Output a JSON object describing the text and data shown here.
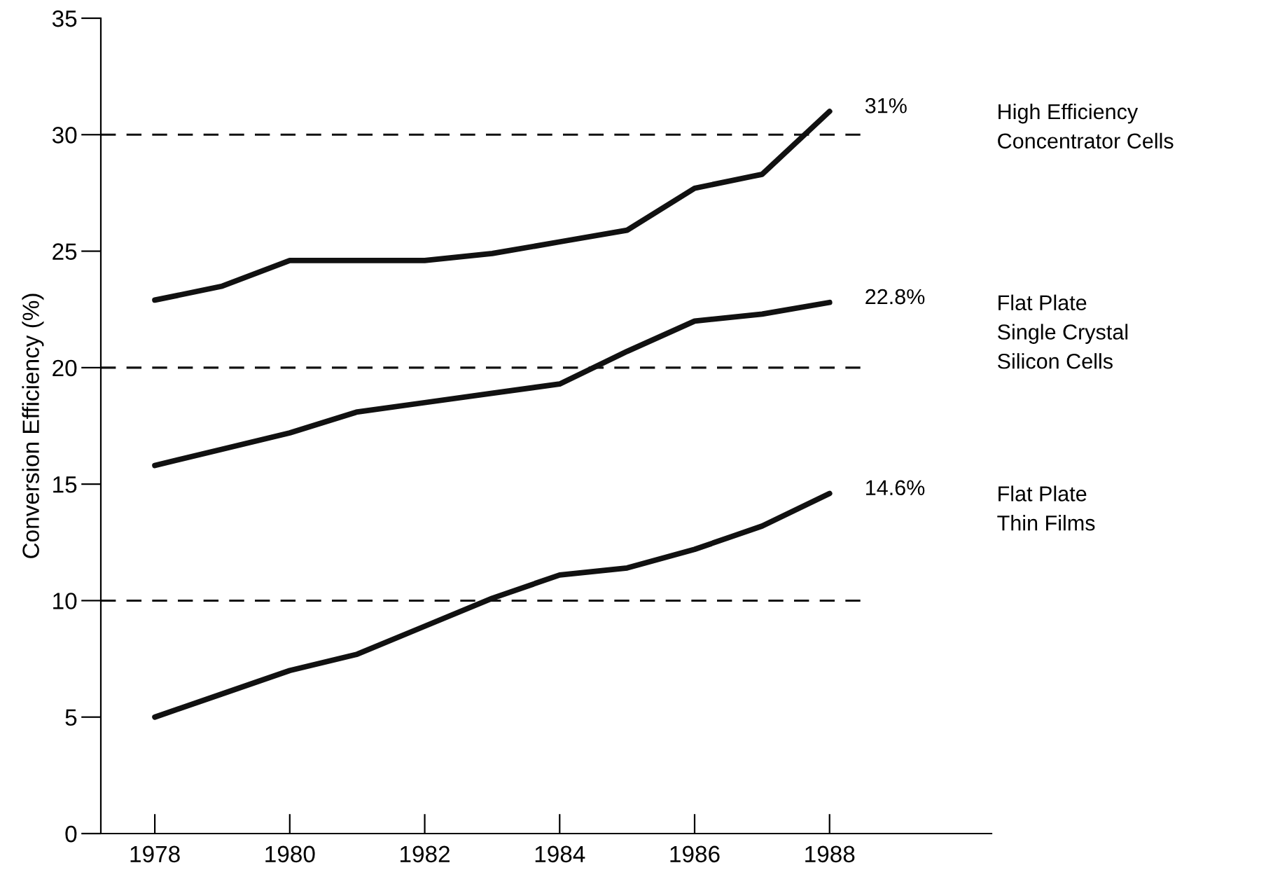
{
  "chart_data": {
    "type": "line",
    "ylabel": "Conversion Efficiency (%)",
    "x": [
      1978,
      1979,
      1980,
      1981,
      1982,
      1983,
      1984,
      1985,
      1986,
      1987,
      1988
    ],
    "series": [
      {
        "name": "High Efficiency\nConcentrator Cells",
        "color": "#111111",
        "values": [
          22.9,
          23.5,
          24.6,
          24.6,
          24.6,
          24.9,
          25.4,
          25.9,
          27.7,
          28.3,
          31
        ],
        "value_labels": [
          null,
          null,
          null,
          null,
          null,
          null,
          null,
          null,
          null,
          null,
          "31%"
        ]
      },
      {
        "name": "Flat Plate\nSingle Crystal\nSilicon Cells",
        "color": "#111111",
        "values": [
          15.8,
          16.5,
          17.2,
          18.1,
          18.5,
          18.9,
          19.3,
          20.7,
          22.0,
          22.3,
          22.8
        ],
        "value_labels": [
          null,
          null,
          null,
          null,
          null,
          null,
          null,
          null,
          null,
          null,
          "22.8%"
        ]
      },
      {
        "name": "Flat Plate\nThin Films",
        "color": "#111111",
        "values": [
          5.0,
          6.0,
          7.0,
          7.7,
          8.9,
          10.1,
          11.1,
          11.4,
          12.2,
          13.2,
          14.6
        ],
        "value_labels": [
          null,
          null,
          null,
          null,
          null,
          null,
          null,
          null,
          null,
          null,
          "14.6%"
        ]
      }
    ],
    "xlim": [
      1977.2,
      1990.4
    ],
    "xticks": [
      1978,
      1980,
      1982,
      1984,
      1986,
      1988
    ],
    "ylim": [
      0,
      35
    ],
    "yticks": [
      0,
      5,
      10,
      15,
      20,
      25,
      30,
      35
    ],
    "ref_lines": [
      {
        "axis": "y",
        "value": 10,
        "label": null,
        "color": "#111111",
        "line_style": "dashed"
      },
      {
        "axis": "y",
        "value": 20,
        "label": null,
        "color": "#111111",
        "line_style": "dashed"
      },
      {
        "axis": "y",
        "value": 30,
        "label": null,
        "color": "#111111",
        "line_style": "dashed"
      }
    ],
    "grid": false,
    "legend": false,
    "marker": "none",
    "line_style": "solid"
  }
}
